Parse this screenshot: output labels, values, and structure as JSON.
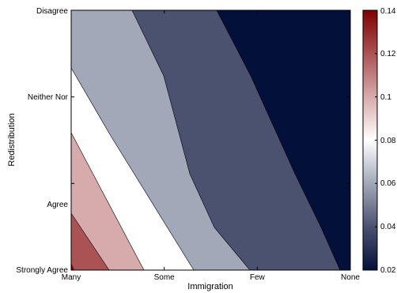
{
  "chart_data": {
    "type": "contour",
    "xlabel": "Immigration",
    "ylabel": "Redistribution",
    "x_categories": [
      "Many",
      "Some",
      "Few",
      "None"
    ],
    "y_categories": [
      "Strongly Agree",
      "Agree",
      "Neither Nor",
      "Disagree"
    ],
    "colorbar": {
      "range": [
        0.02,
        0.14
      ],
      "ticks": [
        "0.02",
        "0.04",
        "0.06",
        "0.08",
        "0.1",
        "0.12",
        "0.14"
      ],
      "colors_low_to_high": [
        "#03103a",
        "#4a5270",
        "#a3a8b8",
        "#ffffff",
        "#d7aaab",
        "#ab5254",
        "#800000"
      ]
    },
    "contour_levels": [
      0.04,
      0.06,
      0.08,
      0.1,
      0.12
    ],
    "level_boundaries": [
      {
        "level": 0.12,
        "points": [
          [
            0,
            0.22
          ],
          [
            0.13,
            0
          ]
        ]
      },
      {
        "level": 0.1,
        "points": [
          [
            0,
            0.5
          ],
          [
            0.26,
            0
          ]
        ]
      },
      {
        "level": 0.08,
        "points": [
          [
            0,
            1.27
          ],
          [
            0.32,
            0.39
          ],
          [
            0.43,
            0
          ]
        ]
      },
      {
        "level": 0.06,
        "points": [
          [
            0,
            3.0
          ],
          [
            0.38,
            2.25
          ],
          [
            0.77,
            1.12
          ],
          [
            1.02,
            0.5
          ],
          [
            1.25,
            0
          ]
        ]
      },
      {
        "level": 0.04,
        "points": [
          [
            0.71,
            3.0
          ],
          [
            1.11,
            2.25
          ],
          [
            1.58,
            1.12
          ],
          [
            1.84,
            0.5
          ],
          [
            2.07,
            0
          ]
        ]
      }
    ]
  }
}
